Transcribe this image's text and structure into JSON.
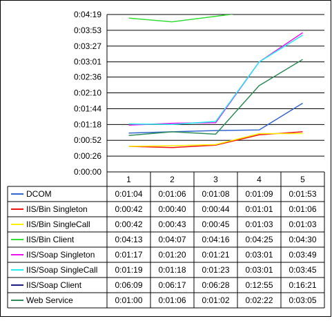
{
  "chart_data": {
    "type": "line",
    "categories": [
      "1",
      "2",
      "3",
      "4",
      "5"
    ],
    "y_tick_labels": [
      "0:00:00",
      "0:00:26",
      "0:00:52",
      "0:01:18",
      "0:01:44",
      "0:02:10",
      "0:02:36",
      "0:03:01",
      "0:03:27",
      "0:03:53",
      "0:04:19"
    ],
    "ylim": [
      "0:00:00",
      "0:04:19"
    ],
    "grid": true,
    "legend_placement": "bottom data table",
    "series": [
      {
        "name": "DCOM",
        "color": "#3366cc",
        "values": [
          "0:01:04",
          "0:01:06",
          "0:01:08",
          "0:01:09",
          "0:01:53"
        ]
      },
      {
        "name": "IIS/Bin Singleton",
        "color": "#ee1111",
        "values": [
          "0:00:42",
          "0:00:40",
          "0:00:44",
          "0:01:01",
          "0:01:06"
        ]
      },
      {
        "name": "IIS/Bin SingleCall",
        "color": "#ffee00",
        "values": [
          "0:00:42",
          "0:00:43",
          "0:00:45",
          "0:01:03",
          "0:01:03"
        ]
      },
      {
        "name": "IIS/Bin Client",
        "color": "#33dd33",
        "values": [
          "0:04:13",
          "0:04:07",
          "0:04:16",
          "0:04:25",
          "0:04:30"
        ]
      },
      {
        "name": "IIS/Soap Singleton",
        "color": "#ee11ee",
        "values": [
          "0:01:17",
          "0:01:20",
          "0:01:21",
          "0:03:01",
          "0:03:49"
        ]
      },
      {
        "name": "IIS/Soap SingleCall",
        "color": "#22eeee",
        "values": [
          "0:01:19",
          "0:01:18",
          "0:01:23",
          "0:03:01",
          "0:03:45"
        ]
      },
      {
        "name": "IIS/Soap Client",
        "color": "#1a1a80",
        "values": [
          "0:06:09",
          "0:06:17",
          "0:06:28",
          "0:12:55",
          "0:16:21"
        ]
      },
      {
        "name": "Web Service",
        "color": "#2e8b57",
        "values": [
          "0:01:00",
          "0:01:06",
          "0:01:02",
          "0:02:22",
          "0:03:05"
        ]
      }
    ]
  }
}
